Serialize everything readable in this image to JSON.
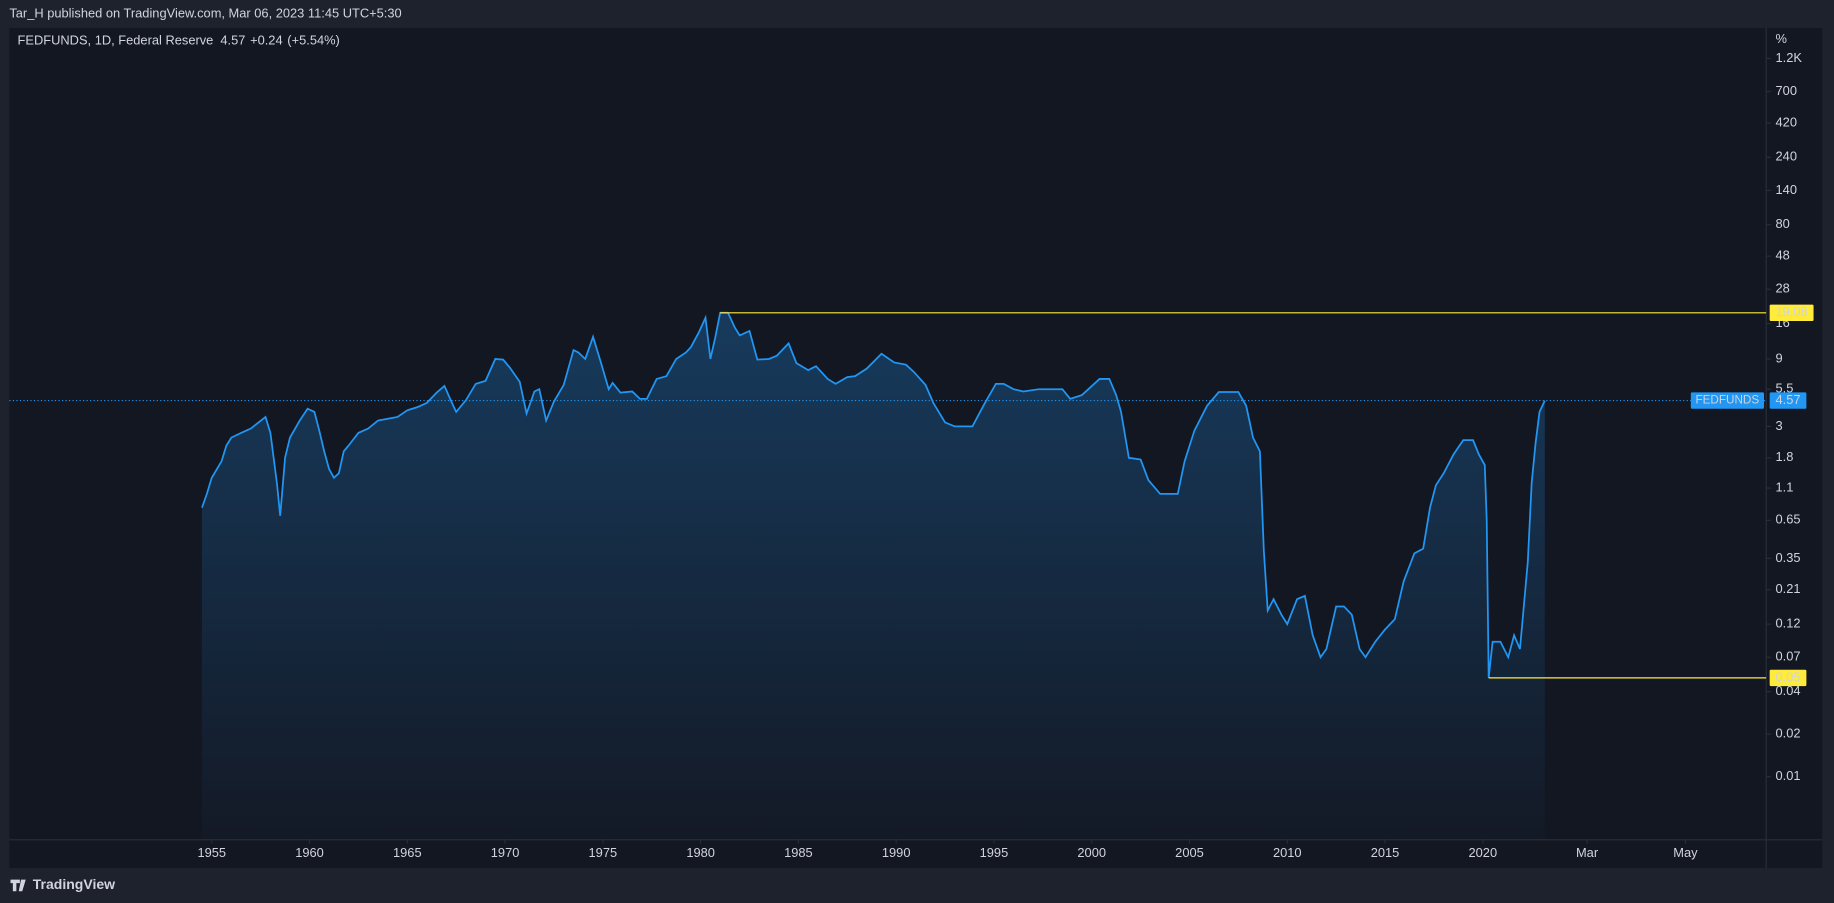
{
  "top_bar": "Tar_H published on TradingView.com, Mar 06, 2023 11:45 UTC+5:30",
  "footer": "TradingView",
  "chart_data": {
    "type": "line",
    "log_scale": true,
    "grid": false,
    "title": "FEDFUNDS, 1D, Federal Reserve",
    "last": 4.57,
    "change": "+0.24",
    "change_pct": "(+5.54%)",
    "y_label": "%",
    "x": [
      1954.5,
      1954.75,
      1955,
      1955.5,
      1955.75,
      1956,
      1956.5,
      1957,
      1957.75,
      1958,
      1958.33,
      1958.5,
      1958.75,
      1959,
      1959.5,
      1959.9,
      1960.25,
      1960.5,
      1960.75,
      1961,
      1961.25,
      1961.5,
      1961.75,
      1962,
      1962.5,
      1963,
      1963.5,
      1964,
      1964.5,
      1965,
      1965.5,
      1966,
      1966.5,
      1966.9,
      1967.25,
      1967.5,
      1968,
      1968.5,
      1969,
      1969.5,
      1969.9,
      1970.25,
      1970.75,
      1971.1,
      1971.5,
      1971.75,
      1972.1,
      1972.5,
      1973,
      1973.5,
      1973.75,
      1974.1,
      1974.5,
      1974.9,
      1975.3,
      1975.5,
      1975.9,
      1976.5,
      1976.9,
      1977.25,
      1977.75,
      1978.25,
      1978.75,
      1979.25,
      1979.5,
      1979.9,
      1980.25,
      1980.5,
      1980.75,
      1981,
      1981.4,
      1981.75,
      1982,
      1982.5,
      1982.9,
      1983.5,
      1983.9,
      1984.5,
      1984.9,
      1985.5,
      1985.9,
      1986.5,
      1986.9,
      1987.5,
      1987.9,
      1988.5,
      1989.25,
      1989.9,
      1990.5,
      1990.9,
      1991.5,
      1991.9,
      1992.5,
      1993,
      1993.9,
      1994.5,
      1995.1,
      1995.5,
      1996,
      1996.5,
      1997.3,
      1998.5,
      1998.9,
      1999.5,
      2000.4,
      2000.9,
      2001.25,
      2001.5,
      2001.9,
      2002.5,
      2002.9,
      2003.5,
      2004.4,
      2004.75,
      2005.25,
      2005.9,
      2006.5,
      2007.5,
      2007.9,
      2008.25,
      2008.6,
      2008.8,
      2009,
      2009.3,
      2009.7,
      2010,
      2010.5,
      2010.9,
      2011.3,
      2011.7,
      2012,
      2012.5,
      2012.9,
      2013.3,
      2013.7,
      2014,
      2014.5,
      2015,
      2015.5,
      2015.95,
      2016.5,
      2016.95,
      2017.3,
      2017.6,
      2018,
      2018.5,
      2019,
      2019.5,
      2019.8,
      2020.1,
      2020.2,
      2020.3,
      2020.5,
      2020.9,
      2021.3,
      2021.6,
      2021.9,
      2022.3,
      2022.5,
      2022.7,
      2022.9,
      2023.17
    ],
    "series": [
      {
        "name": "FEDFUNDS",
        "color": "#2196f3",
        "values": [
          0.8,
          1.0,
          1.3,
          1.7,
          2.2,
          2.5,
          2.7,
          2.9,
          3.5,
          2.7,
          1.2,
          0.7,
          1.8,
          2.5,
          3.3,
          4.0,
          3.8,
          2.8,
          2.0,
          1.5,
          1.3,
          1.4,
          2.0,
          2.2,
          2.7,
          2.9,
          3.3,
          3.4,
          3.5,
          3.9,
          4.1,
          4.4,
          5.2,
          5.8,
          4.5,
          3.8,
          4.6,
          6.0,
          6.3,
          9.0,
          8.9,
          7.8,
          6.2,
          3.7,
          5.3,
          5.5,
          3.3,
          4.5,
          5.9,
          10.4,
          10.0,
          9.0,
          12.9,
          8.5,
          5.5,
          6.1,
          5.2,
          5.3,
          4.7,
          4.7,
          6.5,
          6.8,
          9.0,
          10.0,
          10.9,
          13.8,
          17.6,
          9.0,
          12.8,
          19.1,
          19.1,
          15.0,
          13.2,
          14.2,
          8.9,
          9.0,
          9.5,
          11.6,
          8.4,
          7.5,
          8.0,
          6.5,
          6.0,
          6.7,
          6.8,
          7.7,
          9.8,
          8.5,
          8.2,
          7.3,
          5.9,
          4.4,
          3.2,
          3.0,
          3.0,
          4.3,
          6.0,
          6.0,
          5.5,
          5.3,
          5.5,
          5.5,
          4.7,
          5.0,
          6.5,
          6.5,
          5.0,
          3.8,
          1.8,
          1.75,
          1.25,
          1.0,
          1.0,
          1.7,
          2.8,
          4.2,
          5.25,
          5.25,
          4.2,
          2.5,
          2.0,
          0.4,
          0.15,
          0.18,
          0.14,
          0.12,
          0.18,
          0.19,
          0.1,
          0.07,
          0.08,
          0.16,
          0.16,
          0.14,
          0.08,
          0.07,
          0.09,
          0.11,
          0.13,
          0.24,
          0.38,
          0.41,
          0.8,
          1.15,
          1.4,
          1.9,
          2.4,
          2.4,
          1.9,
          1.6,
          0.65,
          0.05,
          0.09,
          0.09,
          0.07,
          0.1,
          0.08,
          0.33,
          1.2,
          2.3,
          3.8,
          4.57
        ]
      }
    ],
    "annotations": [
      {
        "value": 19.08,
        "x": 1981.0,
        "color": "#ffeb3b"
      },
      {
        "value": 0.05,
        "x": 2020.3,
        "color": "#ffeb3b"
      }
    ],
    "xlim": [
      1944.65,
      2034.49
    ],
    "xticks": [
      1955,
      1960,
      1965,
      1970,
      1975,
      1980,
      1985,
      1990,
      1995,
      2000,
      2005,
      2010,
      2015,
      2020,
      {
        "value": 2025.33,
        "label": "Mar"
      },
      {
        "value": 2030.36,
        "label": "May"
      }
    ],
    "ylim": [
      0.00358,
      1823
    ],
    "yticks": [
      {
        "value": 1200,
        "label": "1.2K"
      },
      700,
      420,
      240,
      140,
      80,
      48,
      28,
      16,
      9,
      5.5,
      3,
      1.8,
      1.1,
      0.65,
      0.35,
      0.21,
      0.12,
      0.07,
      0.04,
      0.02,
      0.01
    ]
  }
}
